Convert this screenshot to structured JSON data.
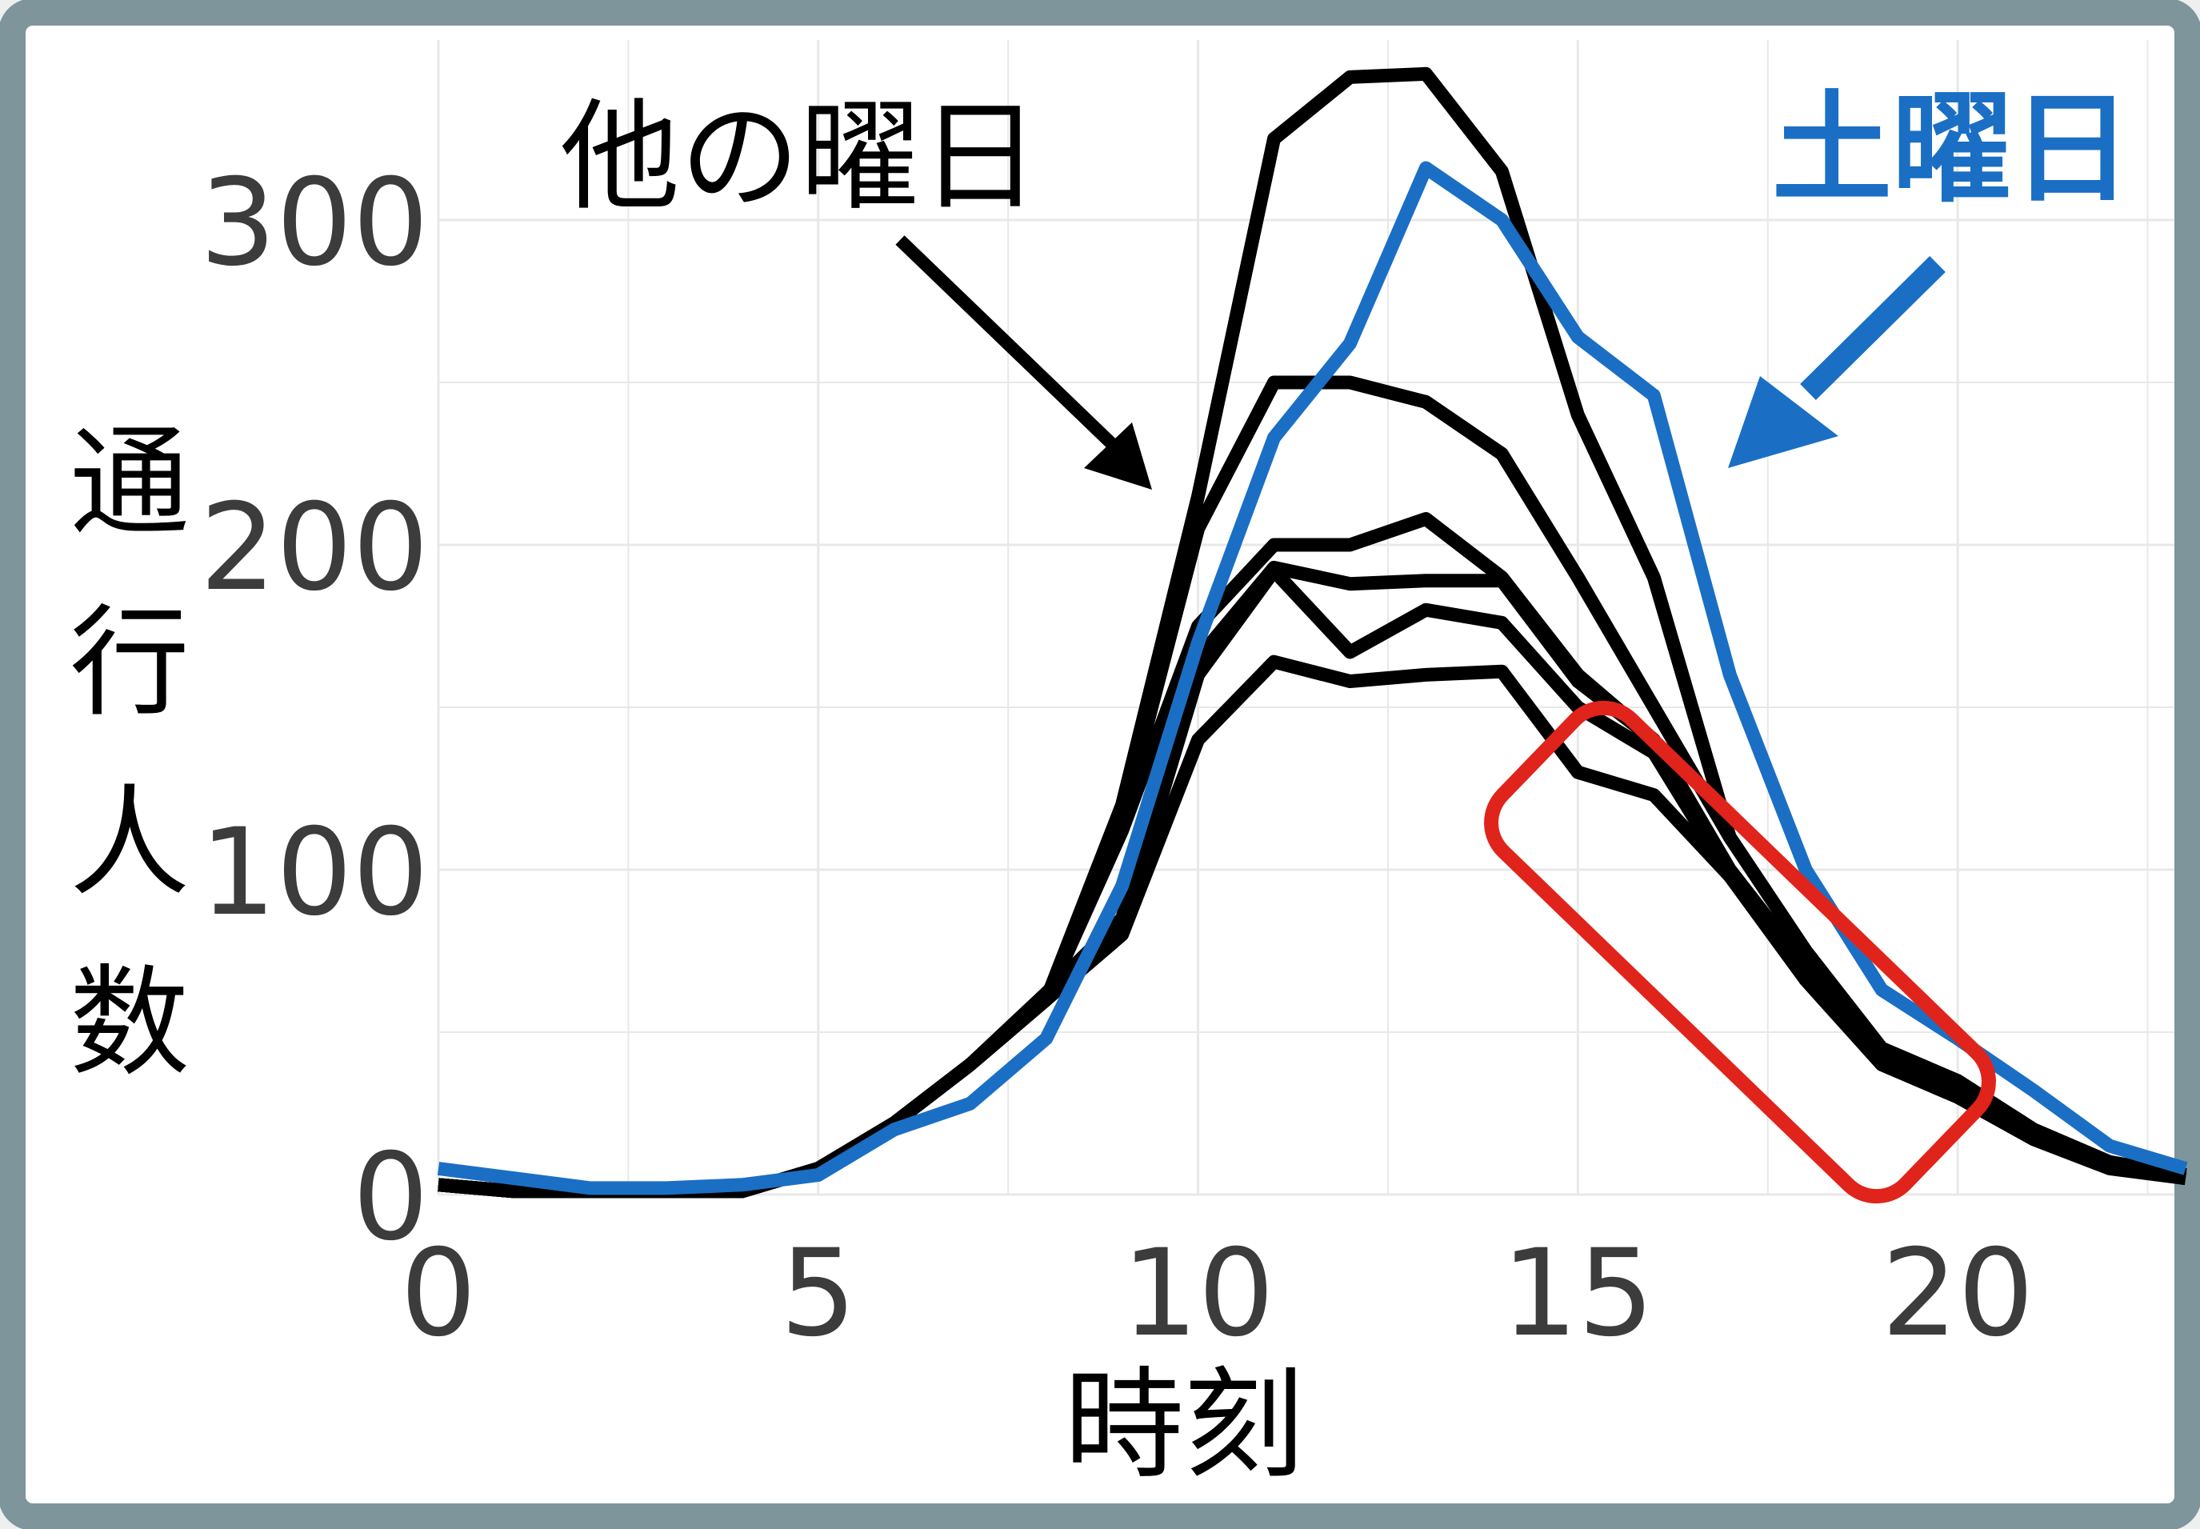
{
  "chart_data": {
    "type": "line",
    "xlabel": "時刻",
    "ylabel": "通行人数",
    "x_ticks": [
      0,
      5,
      10,
      15,
      20
    ],
    "y_ticks": [
      0,
      100,
      200,
      300
    ],
    "xlim": [
      0,
      23
    ],
    "ylim": [
      0,
      340
    ],
    "grid": true,
    "x": [
      0,
      1,
      2,
      3,
      4,
      5,
      6,
      7,
      8,
      9,
      10,
      11,
      12,
      13,
      14,
      15,
      16,
      17,
      18,
      19,
      20,
      21,
      22,
      23
    ],
    "series": [
      {
        "group": "other",
        "color": "#000000",
        "values": [
          3,
          1,
          1,
          1,
          1,
          8,
          22,
          40,
          60,
          120,
          215,
          325,
          344,
          345,
          315,
          240,
          190,
          110,
          75,
          45,
          35,
          20,
          10,
          6
        ]
      },
      {
        "group": "other",
        "color": "#000000",
        "values": [
          3,
          1,
          1,
          1,
          1,
          8,
          22,
          40,
          60,
          115,
          205,
          250,
          250,
          244,
          228,
          190,
          150,
          110,
          75,
          45,
          35,
          20,
          10,
          6
        ]
      },
      {
        "group": "other",
        "color": "#000000",
        "values": [
          3,
          1,
          1,
          1,
          1,
          8,
          22,
          40,
          60,
          112,
          175,
          200,
          200,
          208,
          190,
          160,
          140,
          100,
          70,
          45,
          35,
          20,
          10,
          6
        ]
      },
      {
        "group": "other",
        "color": "#000000",
        "values": [
          3,
          1,
          1,
          1,
          1,
          8,
          22,
          40,
          62,
          85,
          165,
          193,
          188,
          189,
          189,
          158,
          140,
          100,
          70,
          45,
          35,
          20,
          10,
          6
        ]
      },
      {
        "group": "other",
        "color": "#000000",
        "values": [
          3,
          1,
          1,
          1,
          1,
          8,
          22,
          40,
          60,
          82,
          160,
          192,
          167,
          180,
          176,
          150,
          136,
          98,
          68,
          42,
          33,
          18,
          9,
          5
        ]
      },
      {
        "group": "other",
        "color": "#000000",
        "values": [
          3,
          1,
          1,
          1,
          1,
          8,
          22,
          40,
          60,
          80,
          140,
          164,
          158,
          160,
          161,
          130,
          123,
          98,
          66,
          40,
          30,
          17,
          8,
          5
        ]
      },
      {
        "group": "saturday",
        "color": "#1a6fc4",
        "values": [
          8,
          5,
          2,
          2,
          3,
          6,
          20,
          28,
          48,
          95,
          170,
          233,
          262,
          316,
          300,
          264,
          246,
          160,
          100,
          63,
          48,
          32,
          15,
          8
        ]
      }
    ],
    "annotations": {
      "other_label": "他の曜日",
      "saturday_label": "土曜日",
      "saturday_color": "#1a6fc4",
      "highlight_box_color": "#e0241b"
    }
  },
  "frame": {
    "border_color": "#7e959b",
    "background_color": "#ffffff",
    "grid_color": "#e8e8e8",
    "tick_color": "#3c3c3c"
  }
}
